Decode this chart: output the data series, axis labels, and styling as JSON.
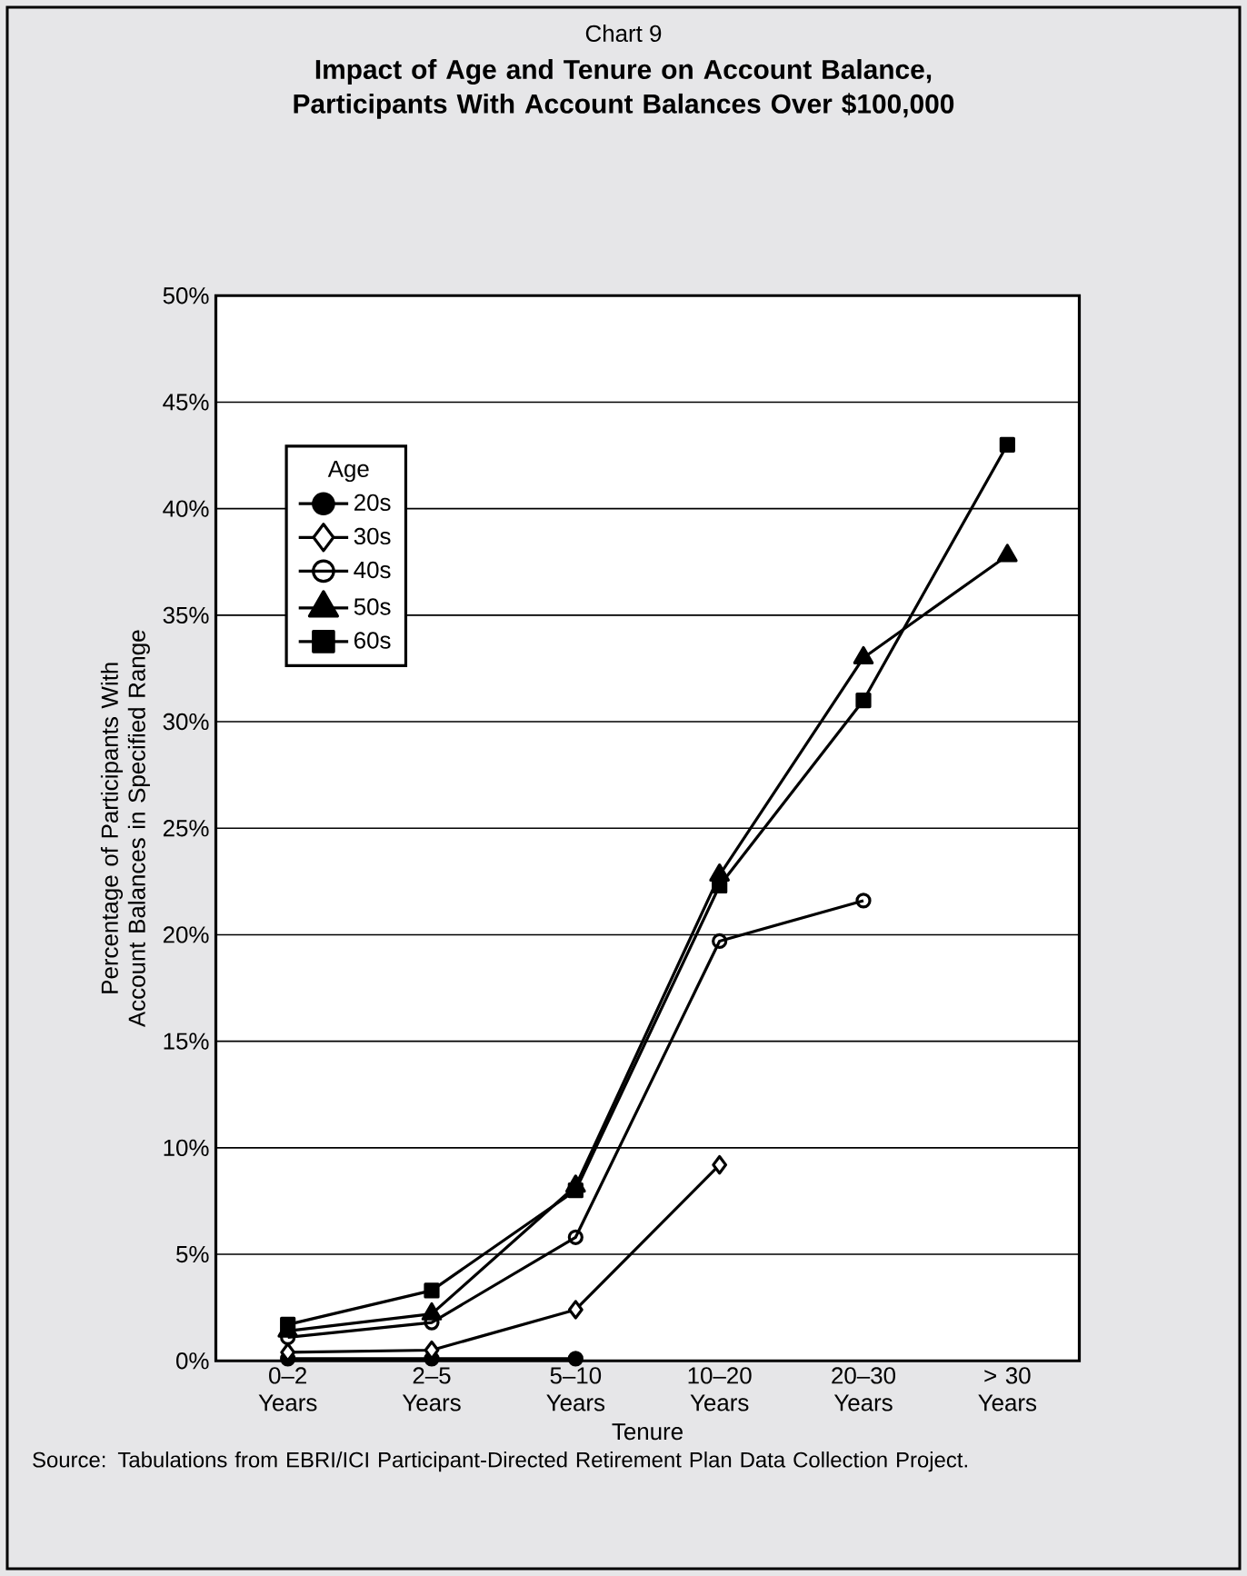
{
  "chart_data": {
    "type": "line",
    "title": "Chart 9",
    "subtitle": "Impact of Age and Tenure on Account Balance, Participants With Account Balances Over $100,000",
    "xlabel": "Tenure",
    "ylabel": "Percentage of Participants With Account Balances in Specified Range",
    "categories": [
      "0–2 Years",
      "2–5 Years",
      "5–10 Years",
      "10–20 Years",
      "20–30 Years",
      "> 30 Years"
    ],
    "series": [
      {
        "name": "20s",
        "color": "#000000",
        "marker": "circle",
        "values": [
          0.1,
          0.1,
          0.1,
          null,
          null,
          null
        ]
      },
      {
        "name": "30s",
        "color": "#000000",
        "marker": "diamond",
        "values": [
          0.4,
          0.5,
          2.4,
          9.2,
          null,
          null
        ]
      },
      {
        "name": "40s",
        "color": "#000000",
        "marker": "circle-open",
        "values": [
          1.1,
          1.8,
          5.8,
          19.7,
          21.6,
          null
        ]
      },
      {
        "name": "50s",
        "color": "#000000",
        "marker": "triangle",
        "values": [
          1.4,
          2.2,
          8.2,
          22.8,
          33.0,
          37.8
        ]
      },
      {
        "name": "60s",
        "color": "#000000",
        "marker": "square",
        "values": [
          1.7,
          3.3,
          8.0,
          22.3,
          31.0,
          43.0
        ]
      }
    ],
    "ylim": [
      0,
      50
    ],
    "yticks": [
      {
        "value": 0,
        "label": "0%"
      },
      {
        "value": 5,
        "label": "5%"
      },
      {
        "value": 10,
        "label": "10%"
      },
      {
        "value": 15,
        "label": "15%"
      },
      {
        "value": 20,
        "label": "20%"
      },
      {
        "value": 25,
        "label": "25%"
      },
      {
        "value": 30,
        "label": "30%"
      },
      {
        "value": 35,
        "label": "35%"
      },
      {
        "value": 40,
        "label": "40%"
      },
      {
        "value": 45,
        "label": "45%"
      },
      {
        "value": 50,
        "label": "50%"
      }
    ],
    "grid": "y",
    "legend": "top left",
    "legend_title": "Age",
    "line_style": "solid",
    "annotations": [
      "Source: Tabulations from EBRI/ICI Participant-Directed Retirement Plan Data Collection Project."
    ]
  }
}
